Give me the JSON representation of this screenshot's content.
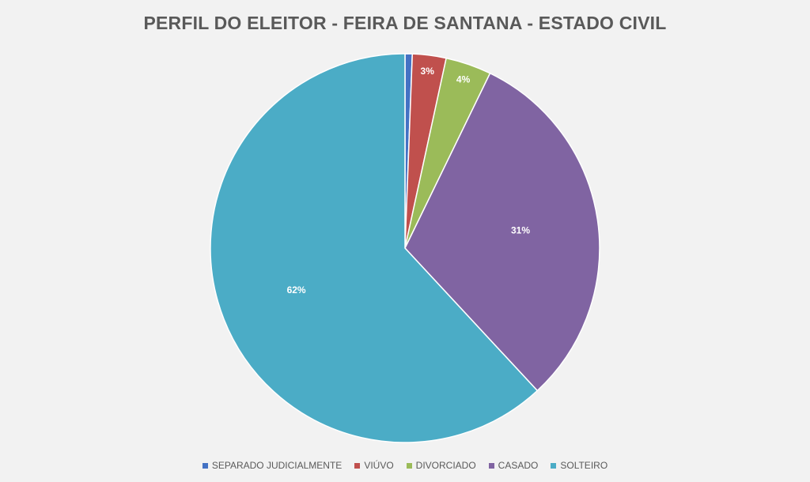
{
  "chart_data": {
    "type": "pie",
    "title": "PERFIL DO ELEITOR - FEIRA DE SANTANA - ESTADO CIVIL",
    "categories": [
      "SEPARADO JUDICIALMENTE",
      "VIÚVO",
      "DIVORCIADO",
      "CASADO",
      "SOLTEIRO"
    ],
    "values": [
      0.6,
      2.8,
      3.8,
      30.9,
      61.9
    ],
    "data_labels": [
      "",
      "3%",
      "4%",
      "31%",
      "62%"
    ],
    "colors": [
      "#4472c4",
      "#c0504d",
      "#9bbb59",
      "#8064a2",
      "#4bacc6"
    ],
    "legend_position": "bottom"
  }
}
